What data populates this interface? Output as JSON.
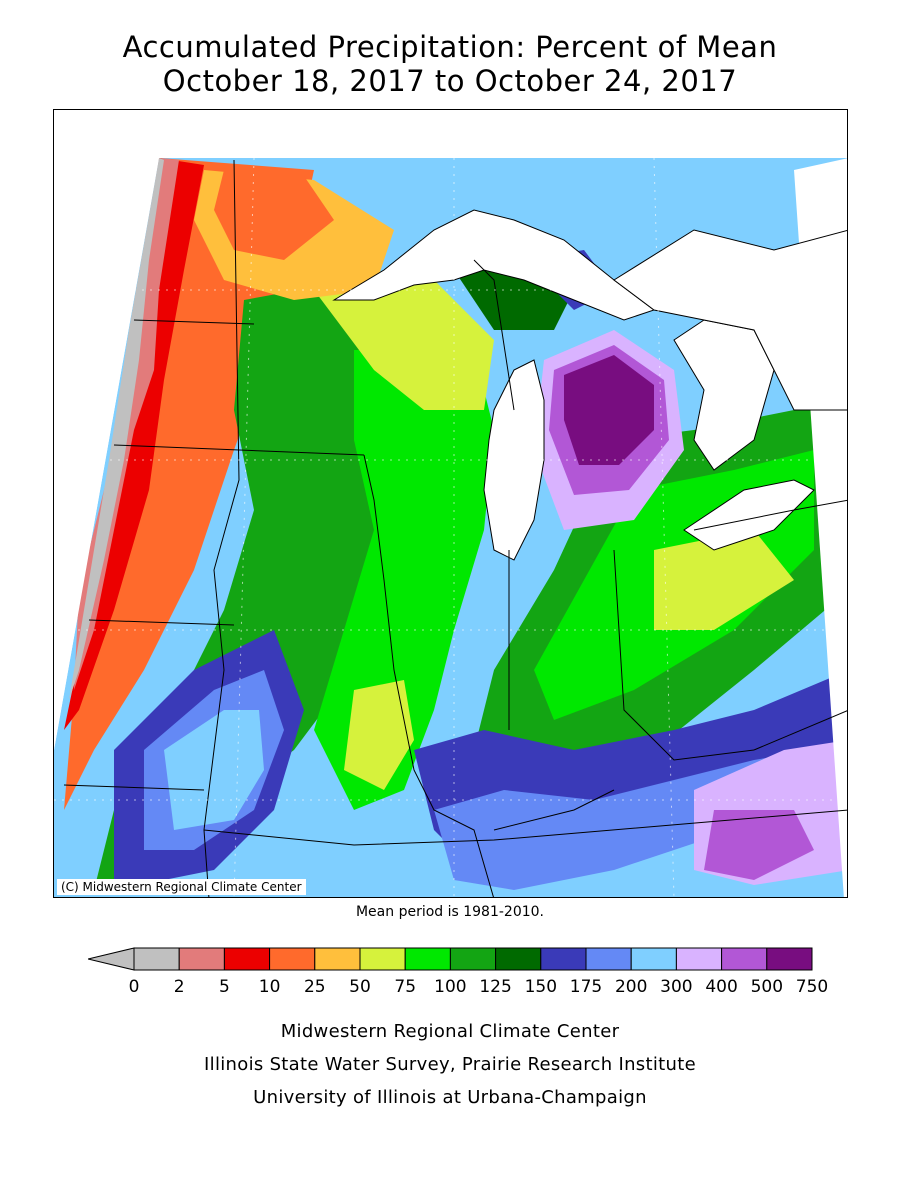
{
  "title": {
    "line1": "Accumulated Precipitation: Percent of Mean",
    "line2": "October 18, 2017 to October 24, 2017"
  },
  "map": {
    "copyright": "(C) Midwestern Regional Climate Center",
    "mean_period": "Mean period is 1981-2010."
  },
  "legend": {
    "ticks": [
      "0",
      "2",
      "5",
      "10",
      "25",
      "50",
      "75",
      "100",
      "125",
      "150",
      "175",
      "200",
      "300",
      "400",
      "500",
      "750"
    ],
    "colors": [
      "#c0c0c0",
      "#e27b7b",
      "#ec0000",
      "#ff6a2c",
      "#ffbf3c",
      "#d6f23c",
      "#00e800",
      "#13a513",
      "#006a00",
      "#3a3ab8",
      "#6489f5",
      "#7fcfff",
      "#d9b3ff",
      "#b257d6",
      "#780d80"
    ]
  },
  "credits": {
    "line1": "Midwestern Regional Climate Center",
    "line2": "Illinois State Water Survey, Prairie Research Institute",
    "line3": "University of Illinois at Urbana-Champaign"
  }
}
